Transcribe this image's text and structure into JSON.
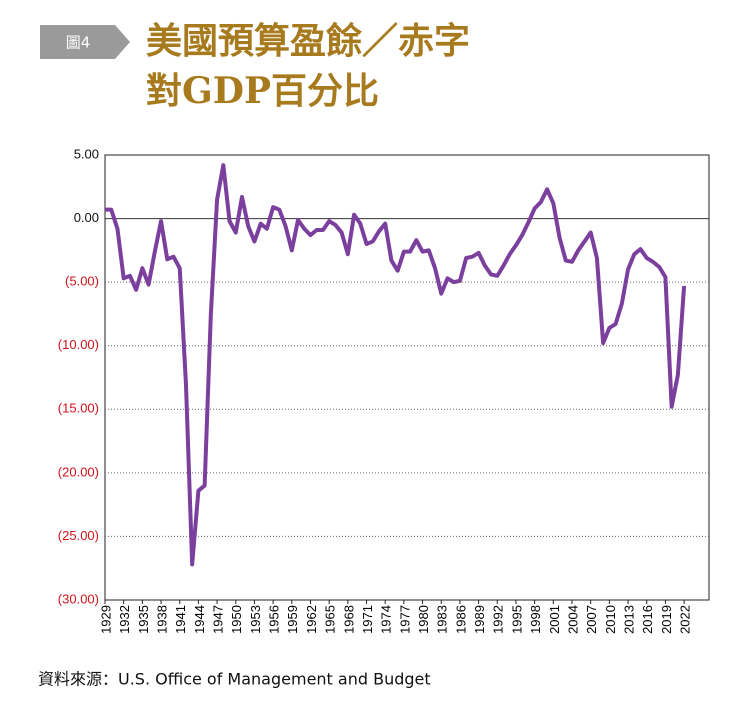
{
  "figure_label": "圖4",
  "title_lines": [
    "美國預算盈餘／赤字",
    "對GDP百分比"
  ],
  "source": "資料來源：U.S. Office of Management and Budget",
  "chart_data": {
    "type": "line",
    "color": "#7b3f9e",
    "negative_tick_color": "#d0121b",
    "grid": true,
    "x": [
      1929,
      1930,
      1931,
      1932,
      1933,
      1934,
      1935,
      1936,
      1937,
      1938,
      1939,
      1940,
      1941,
      1942,
      1943,
      1944,
      1945,
      1946,
      1947,
      1948,
      1949,
      1950,
      1951,
      1952,
      1953,
      1954,
      1955,
      1956,
      1957,
      1958,
      1959,
      1960,
      1961,
      1962,
      1963,
      1964,
      1965,
      1966,
      1967,
      1968,
      1969,
      1970,
      1971,
      1972,
      1973,
      1974,
      1975,
      1976,
      1977,
      1978,
      1979,
      1980,
      1981,
      1982,
      1983,
      1984,
      1985,
      1986,
      1987,
      1988,
      1989,
      1990,
      1991,
      1992,
      1993,
      1994,
      1995,
      1996,
      1997,
      1998,
      1999,
      2000,
      2001,
      2002,
      2003,
      2004,
      2005,
      2006,
      2007,
      2008,
      2009,
      2010,
      2011,
      2012,
      2013,
      2014,
      2015,
      2016,
      2017,
      2018,
      2019,
      2020,
      2021,
      2022
    ],
    "values": [
      0.7,
      0.7,
      -0.8,
      -4.7,
      -4.5,
      -5.6,
      -3.9,
      -5.2,
      -2.6,
      -0.2,
      -3.2,
      -3.0,
      -3.9,
      -13.0,
      -27.2,
      -21.4,
      -21.0,
      -7.5,
      1.5,
      4.2,
      -0.2,
      -1.1,
      1.7,
      -0.6,
      -1.8,
      -0.4,
      -0.8,
      0.9,
      0.7,
      -0.6,
      -2.5,
      -0.1,
      -0.8,
      -1.3,
      -0.9,
      -0.9,
      -0.2,
      -0.5,
      -1.1,
      -2.8,
      0.3,
      -0.4,
      -2.0,
      -1.8,
      -1.0,
      -0.4,
      -3.3,
      -4.1,
      -2.6,
      -2.6,
      -1.7,
      -2.6,
      -2.5,
      -3.9,
      -5.9,
      -4.7,
      -5.0,
      -4.9,
      -3.1,
      -3.0,
      -2.7,
      -3.7,
      -4.4,
      -4.5,
      -3.7,
      -2.8,
      -2.1,
      -1.3,
      -0.3,
      0.8,
      1.3,
      2.3,
      1.2,
      -1.5,
      -3.3,
      -3.4,
      -2.5,
      -1.8,
      -1.1,
      -3.1,
      -9.8,
      -8.6,
      -8.3,
      -6.7,
      -4.0,
      -2.8,
      -2.4,
      -3.1,
      -3.4,
      -3.8,
      -4.6,
      -14.8,
      -12.3,
      -5.3
    ],
    "xlim": [
      1929,
      2026
    ],
    "xticks": [
      1929,
      1932,
      1935,
      1938,
      1941,
      1944,
      1947,
      1950,
      1953,
      1956,
      1959,
      1962,
      1965,
      1968,
      1971,
      1974,
      1977,
      1980,
      1983,
      1986,
      1989,
      1992,
      1995,
      1998,
      2001,
      2004,
      2007,
      2010,
      2013,
      2016,
      2019,
      2022
    ],
    "ylim": [
      -30,
      5
    ],
    "yticks": [
      {
        "value": 5,
        "label": "5.00"
      },
      {
        "value": 0,
        "label": "0.00"
      },
      {
        "value": -5,
        "label": "(5.00)"
      },
      {
        "value": -10,
        "label": "(10.00)"
      },
      {
        "value": -15,
        "label": "(15.00)"
      },
      {
        "value": -20,
        "label": "(20.00)"
      },
      {
        "value": -25,
        "label": "(25.00)"
      },
      {
        "value": -30,
        "label": "(30.00)"
      }
    ]
  }
}
